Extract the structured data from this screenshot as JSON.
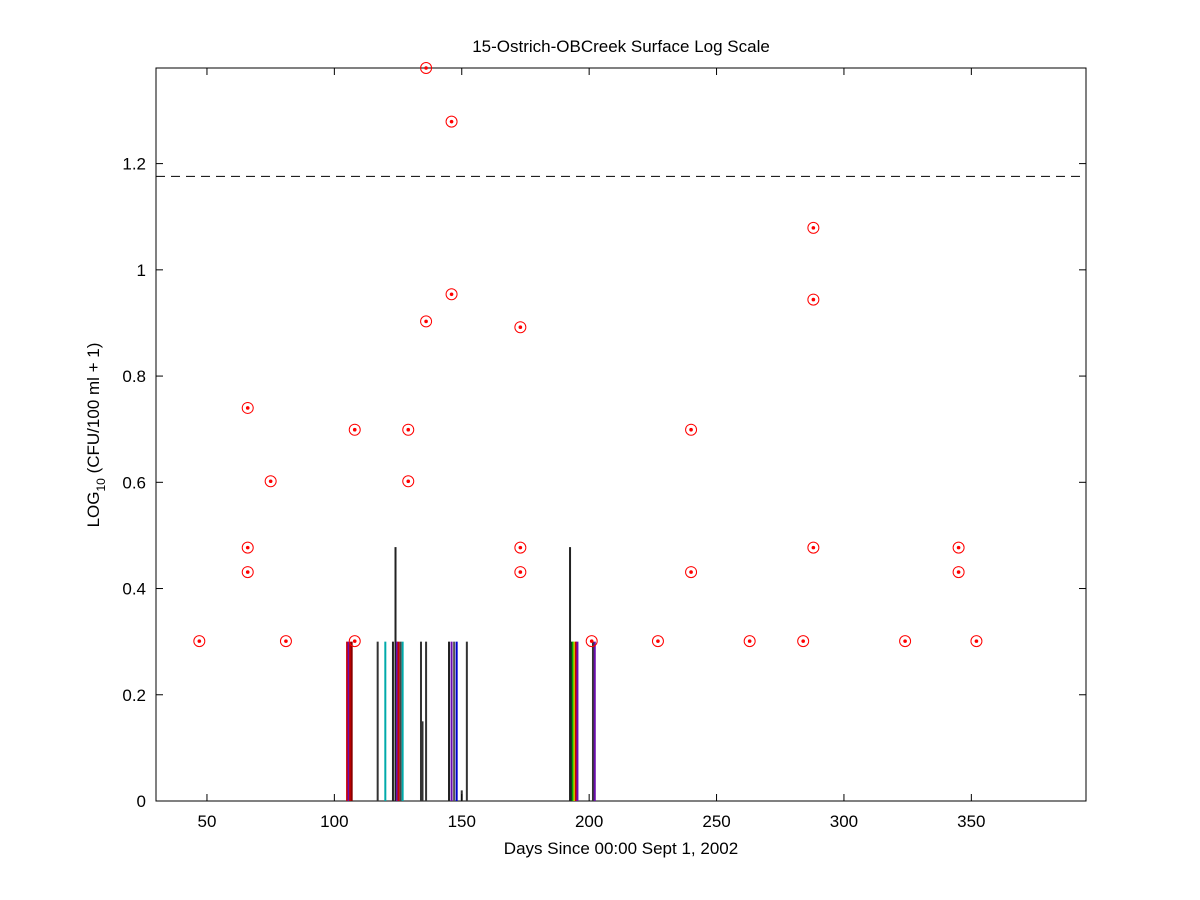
{
  "chart_data": {
    "type": "scatter",
    "title": "15-Ostrich-OBCreek Surface Log Scale",
    "xlabel": "Days Since 00:00 Sept 1, 2002",
    "ylabel": {
      "prefix": "LOG",
      "subscript": "10",
      "suffix": " (CFU/100 ml + 1)"
    },
    "xlim": [
      30,
      395
    ],
    "ylim": [
      0,
      1.38
    ],
    "x_ticks": [
      50,
      100,
      150,
      200,
      250,
      300,
      350
    ],
    "y_ticks": [
      0,
      0.2,
      0.4,
      0.6,
      0.8,
      1,
      1.2
    ],
    "y_tick_labels": [
      "0",
      "0.2",
      "0.4",
      "0.6",
      "0.8",
      "1",
      "1.2"
    ],
    "threshold_line": {
      "y": 1.176,
      "style": "dashed",
      "color": "#000000"
    },
    "marker_color": "#ff0000",
    "points": [
      {
        "x": 47,
        "y": 0.301
      },
      {
        "x": 66,
        "y": 0.74
      },
      {
        "x": 66,
        "y": 0.477
      },
      {
        "x": 66,
        "y": 0.431
      },
      {
        "x": 75,
        "y": 0.602
      },
      {
        "x": 81,
        "y": 0.301
      },
      {
        "x": 108,
        "y": 0.699
      },
      {
        "x": 108,
        "y": 0.301
      },
      {
        "x": 129,
        "y": 0.699
      },
      {
        "x": 129,
        "y": 0.602
      },
      {
        "x": 136,
        "y": 1.38
      },
      {
        "x": 136,
        "y": 0.903
      },
      {
        "x": 146,
        "y": 1.279
      },
      {
        "x": 146,
        "y": 0.954
      },
      {
        "x": 173,
        "y": 0.892
      },
      {
        "x": 173,
        "y": 0.477
      },
      {
        "x": 173,
        "y": 0.431
      },
      {
        "x": 201,
        "y": 0.301
      },
      {
        "x": 227,
        "y": 0.301
      },
      {
        "x": 240,
        "y": 0.699
      },
      {
        "x": 240,
        "y": 0.431
      },
      {
        "x": 263,
        "y": 0.301
      },
      {
        "x": 284,
        "y": 0.301
      },
      {
        "x": 288,
        "y": 1.079
      },
      {
        "x": 288,
        "y": 0.944
      },
      {
        "x": 288,
        "y": 0.477
      },
      {
        "x": 324,
        "y": 0.301
      },
      {
        "x": 345,
        "y": 0.477
      },
      {
        "x": 345,
        "y": 0.431
      },
      {
        "x": 352,
        "y": 0.301
      }
    ],
    "bars": [
      {
        "x": 105,
        "y": 0.3,
        "color": "#cc0000"
      },
      {
        "x": 105.6,
        "y": 0.3,
        "color": "#6a0dad"
      },
      {
        "x": 106.2,
        "y": 0.3,
        "color": "#cc0000"
      },
      {
        "x": 106.8,
        "y": 0.3,
        "color": "#8b0000"
      },
      {
        "x": 117,
        "y": 0.3,
        "color": "#333333"
      },
      {
        "x": 120,
        "y": 0.3,
        "color": "#00aaaa"
      },
      {
        "x": 123,
        "y": 0.3,
        "color": "#222222"
      },
      {
        "x": 124,
        "y": 0.478,
        "color": "#222222"
      },
      {
        "x": 124.6,
        "y": 0.3,
        "color": "#6a0dad"
      },
      {
        "x": 125.2,
        "y": 0.3,
        "color": "#cc0000"
      },
      {
        "x": 126,
        "y": 0.3,
        "color": "#444444"
      },
      {
        "x": 126.8,
        "y": 0.3,
        "color": "#00aaaa"
      },
      {
        "x": 134,
        "y": 0.3,
        "color": "#333333"
      },
      {
        "x": 134.6,
        "y": 0.15,
        "color": "#333333"
      },
      {
        "x": 136,
        "y": 0.3,
        "color": "#333333"
      },
      {
        "x": 145,
        "y": 0.3,
        "color": "#222222"
      },
      {
        "x": 146,
        "y": 0.3,
        "color": "#6a0dad"
      },
      {
        "x": 147,
        "y": 0.3,
        "color": "#555555"
      },
      {
        "x": 148,
        "y": 0.3,
        "color": "#0000cc"
      },
      {
        "x": 150,
        "y": 0.02,
        "color": "#333333"
      },
      {
        "x": 152,
        "y": 0.3,
        "color": "#333333"
      },
      {
        "x": 192.5,
        "y": 0.478,
        "color": "#222222"
      },
      {
        "x": 193,
        "y": 0.3,
        "color": "#222222"
      },
      {
        "x": 193.6,
        "y": 0.3,
        "color": "#00aa00"
      },
      {
        "x": 194.2,
        "y": 0.3,
        "color": "#cccc00"
      },
      {
        "x": 194.8,
        "y": 0.3,
        "color": "#cc0000"
      },
      {
        "x": 195.4,
        "y": 0.3,
        "color": "#6a0dad"
      },
      {
        "x": 201.5,
        "y": 0.3,
        "color": "#333333"
      },
      {
        "x": 202.2,
        "y": 0.3,
        "color": "#6a0dad"
      }
    ]
  }
}
